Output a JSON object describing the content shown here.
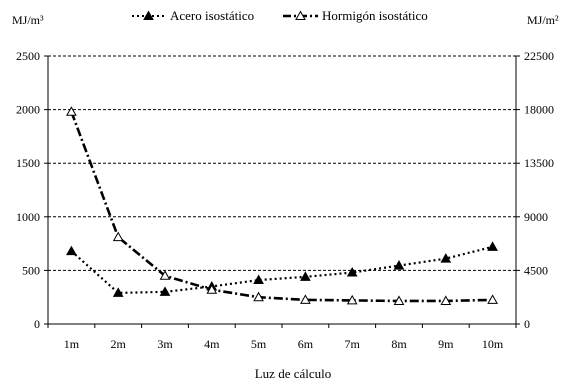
{
  "chart_data": {
    "type": "line",
    "title": "",
    "xlabel": "Luz de cálculo",
    "ylabel_left": "MJ/m³",
    "ylabel_right": "MJ/m²",
    "categories": [
      "1m",
      "2m",
      "3m",
      "4m",
      "5m",
      "6m",
      "7m",
      "8m",
      "9m",
      "10m"
    ],
    "ylim_left": [
      0,
      2500
    ],
    "ylim_right": [
      0,
      22500
    ],
    "yticks_left": [
      0,
      500,
      1000,
      1500,
      2000,
      2500
    ],
    "yticks_right": [
      0,
      4500,
      9000,
      13500,
      18000,
      22500
    ],
    "grid": "horizontal dashed",
    "legend_position": "top",
    "series": [
      {
        "name": "Acero isostático",
        "axis": "left",
        "marker": "filled-triangle",
        "line_style": "dotted",
        "values": [
          680,
          290,
          300,
          350,
          410,
          440,
          480,
          545,
          610,
          720
        ]
      },
      {
        "name": "Hormigón isostático",
        "axis": "left",
        "marker": "open-triangle",
        "line_style": "dash-dot",
        "values": [
          1980,
          810,
          450,
          320,
          250,
          225,
          220,
          215,
          215,
          225
        ]
      }
    ]
  }
}
